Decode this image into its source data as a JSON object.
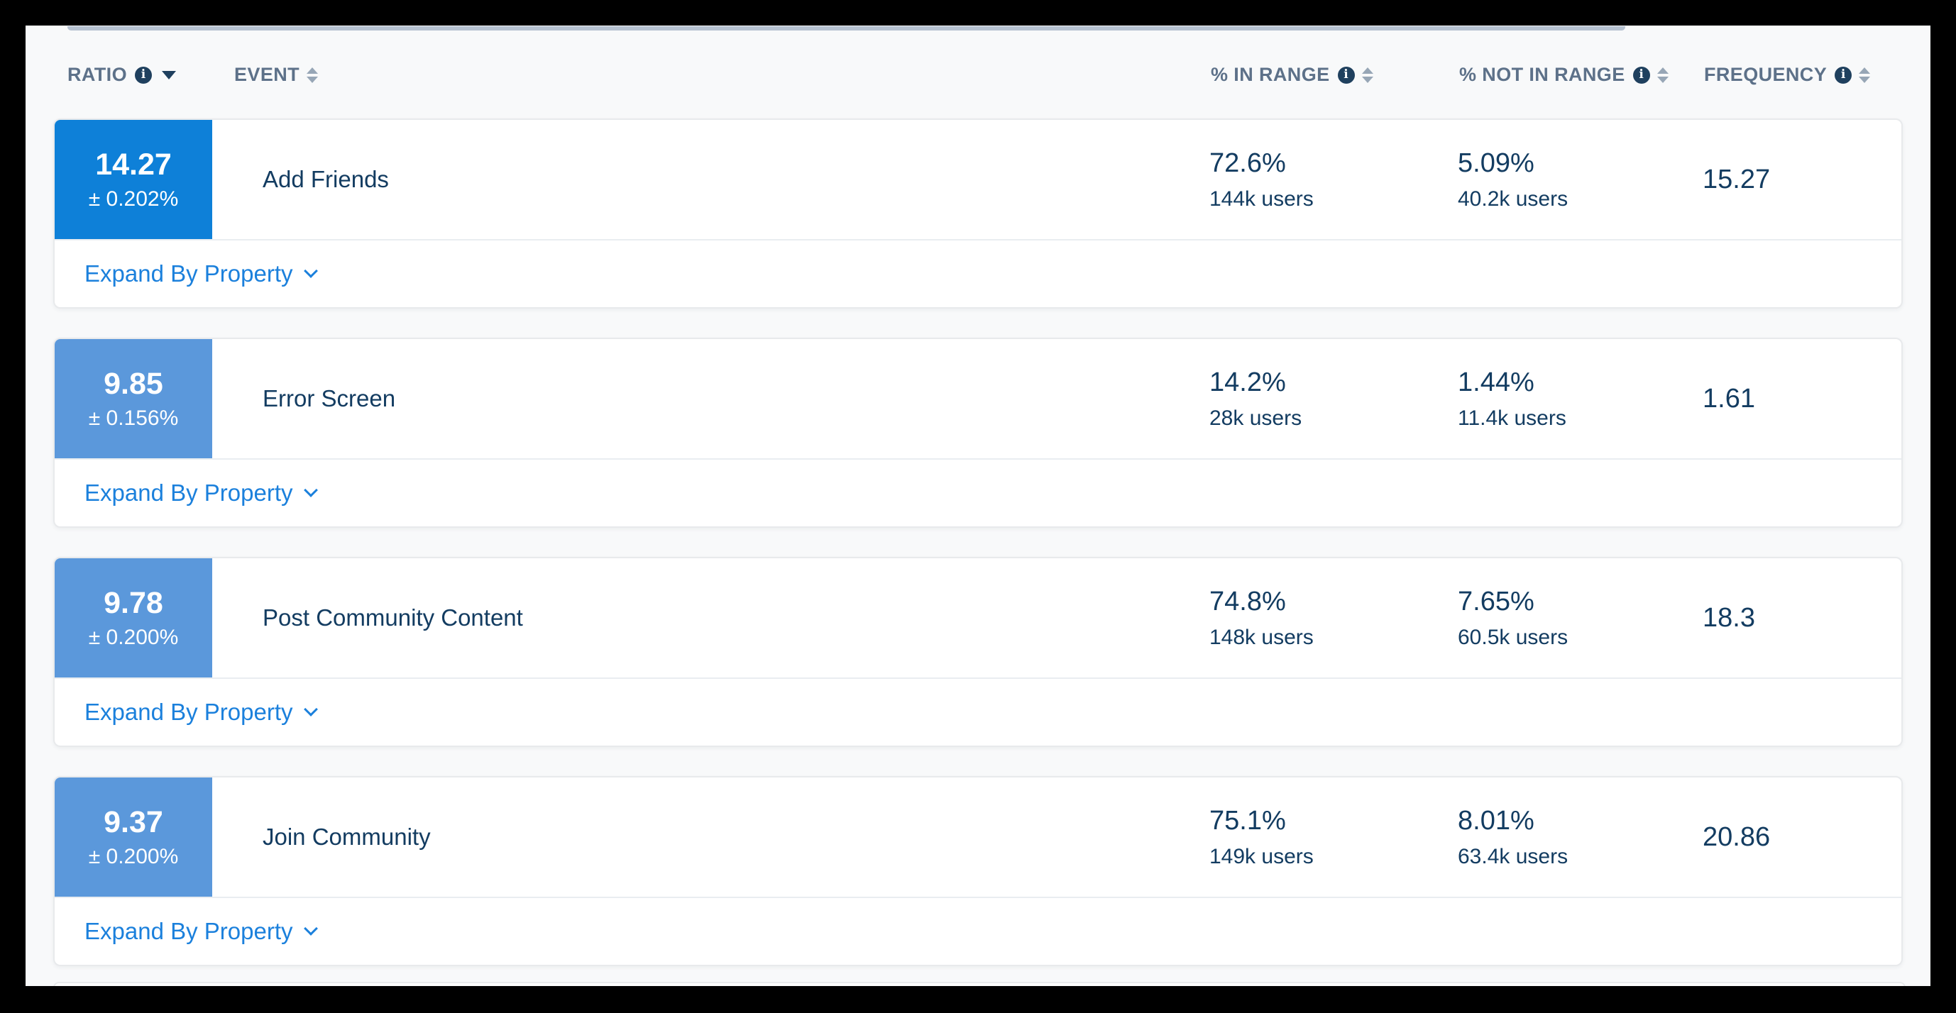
{
  "table": {
    "columns": [
      {
        "label": "RATIO",
        "has_info": true,
        "sort": "desc"
      },
      {
        "label": "EVENT",
        "has_info": false,
        "sort": "both"
      },
      {
        "label": "% IN RANGE",
        "has_info": true,
        "sort": "both"
      },
      {
        "label": "% NOT IN RANGE",
        "has_info": true,
        "sort": "both"
      },
      {
        "label": "FREQUENCY",
        "has_info": true,
        "sort": "both"
      }
    ],
    "rows": [
      {
        "ratio": "14.27",
        "margin": "± 0.202%",
        "event": "Add Friends",
        "in_range_pct": "72.6%",
        "in_range_users": "144k users",
        "not_in_range_pct": "5.09%",
        "not_in_range_users": "40.2k users",
        "frequency": "15.27",
        "expand_label": "Expand By Property"
      },
      {
        "ratio": "9.85",
        "margin": "± 0.156%",
        "event": "Error Screen",
        "in_range_pct": "14.2%",
        "in_range_users": "28k users",
        "not_in_range_pct": "1.44%",
        "not_in_range_users": "11.4k users",
        "frequency": "1.61",
        "expand_label": "Expand By Property"
      },
      {
        "ratio": "9.78",
        "margin": "± 0.200%",
        "event": "Post Community Content",
        "in_range_pct": "74.8%",
        "in_range_users": "148k users",
        "not_in_range_pct": "7.65%",
        "not_in_range_users": "60.5k users",
        "frequency": "18.3",
        "expand_label": "Expand By Property"
      },
      {
        "ratio": "9.37",
        "margin": "± 0.200%",
        "event": "Join Community",
        "in_range_pct": "75.1%",
        "in_range_users": "149k users",
        "not_in_range_pct": "8.01%",
        "not_in_range_users": "63.4k users",
        "frequency": "20.86",
        "expand_label": "Expand By Property"
      }
    ]
  },
  "icons": {
    "info": "info-icon",
    "sort_descending": "sort-desc-icon",
    "sort_both": "sort-icon",
    "expand_chevron": "chevron-down-icon"
  },
  "colors": {
    "badge_primary": "#0e80d8",
    "badge_secondary": "#5b98db",
    "link_blue": "#1b80dc",
    "navy_text": "#133c61",
    "navy_icon": "#1f405e",
    "header_text": "#5d7189",
    "sort_gray": "#97a6b6",
    "page_bg": "#f8f9fa",
    "card_bg": "#ffffff",
    "frame_black": "#000000"
  }
}
